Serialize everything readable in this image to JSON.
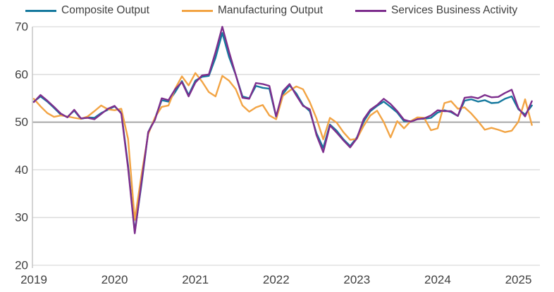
{
  "legend": {
    "items": [
      {
        "label": "Composite Output"
      },
      {
        "label": "Manufacturing Output"
      },
      {
        "label": "Services Business Activity"
      }
    ]
  },
  "axes": {
    "y_tick_labels": [
      "70",
      "60",
      "50",
      "40",
      "30",
      "20"
    ],
    "x_tick_labels": [
      "2019",
      "2020",
      "2021",
      "2022",
      "2023",
      "2024",
      "2025"
    ]
  },
  "colors": {
    "composite": "#16799E",
    "manufacturing": "#F2A444",
    "services": "#7D2E8D",
    "gridline": "#D9D9D9",
    "reference_line_50": "#A6A6A6",
    "axis_line": "#C6C6C6",
    "tick_text": "#404040"
  },
  "chart_data": {
    "type": "line",
    "title": "",
    "xlabel": "",
    "ylabel": "",
    "x_frequency": "monthly",
    "x_start": "2019-01",
    "x_end": "2025-03",
    "x_tick_labels": [
      "2019",
      "2020",
      "2021",
      "2022",
      "2023",
      "2024",
      "2025"
    ],
    "y_ticks": [
      70,
      60,
      50,
      40,
      30,
      20
    ],
    "ylim": [
      20,
      70
    ],
    "reference_line": 50,
    "grid": "horizontal",
    "legend_position": "top",
    "series": [
      {
        "name": "Composite Output",
        "color": "#16799E",
        "values": [
          54.3,
          55.4,
          54.3,
          53.0,
          51.6,
          51.1,
          52.4,
          50.7,
          51.0,
          50.9,
          51.9,
          52.6,
          53.3,
          52.0,
          40.9,
          27.0,
          37.0,
          47.9,
          50.8,
          54.6,
          54.3,
          56.3,
          58.6,
          55.7,
          58.7,
          59.5,
          59.7,
          63.5,
          68.7,
          63.7,
          59.9,
          55.4,
          55.0,
          57.6,
          57.2,
          57.0,
          51.1,
          55.9,
          57.7,
          56.0,
          53.6,
          52.3,
          47.7,
          44.6,
          49.5,
          48.2,
          46.4,
          45.0,
          46.8,
          50.1,
          52.3,
          53.4,
          54.3,
          53.2,
          52.0,
          50.2,
          50.2,
          50.7,
          50.7,
          50.9,
          52.0,
          52.5,
          52.1,
          51.3,
          54.5,
          54.8,
          54.3,
          54.6,
          54.0,
          54.1,
          54.9,
          55.4,
          52.7,
          51.6,
          53.5
        ]
      },
      {
        "name": "Manufacturing Output",
        "color": "#F2A444",
        "values": [
          54.9,
          53.3,
          51.9,
          51.1,
          51.4,
          51.2,
          50.9,
          50.7,
          51.2,
          52.3,
          53.5,
          52.7,
          52.5,
          52.8,
          46.5,
          29.5,
          39.0,
          47.5,
          51.0,
          53.2,
          53.5,
          57.0,
          59.6,
          57.7,
          60.3,
          58.5,
          56.3,
          55.4,
          59.7,
          58.7,
          56.9,
          53.5,
          52.2,
          53.1,
          53.6,
          51.4,
          50.6,
          55.5,
          56.6,
          57.5,
          56.9,
          54.2,
          50.8,
          46.4,
          50.9,
          49.9,
          47.9,
          46.3,
          46.5,
          49.2,
          51.4,
          52.4,
          50.0,
          46.8,
          50.2,
          48.7,
          50.2,
          51.0,
          50.9,
          48.3,
          48.7,
          54.0,
          54.4,
          52.8,
          53.1,
          51.8,
          50.2,
          48.4,
          48.8,
          48.4,
          47.9,
          48.2,
          50.1,
          54.8,
          49.4
        ]
      },
      {
        "name": "Services Business Activity",
        "color": "#7D2E8D",
        "values": [
          54.2,
          55.7,
          54.5,
          53.2,
          51.8,
          51.0,
          52.6,
          50.8,
          50.9,
          50.6,
          51.7,
          52.8,
          53.4,
          51.8,
          40.4,
          26.7,
          37.5,
          47.9,
          50.5,
          55.0,
          54.6,
          56.9,
          58.4,
          55.4,
          58.3,
          59.8,
          60.0,
          64.7,
          70.0,
          64.8,
          59.9,
          55.1,
          54.9,
          58.2,
          58.0,
          57.6,
          51.2,
          56.5,
          58.0,
          55.6,
          53.4,
          52.7,
          47.3,
          43.7,
          49.3,
          47.8,
          46.2,
          44.7,
          46.6,
          50.6,
          52.6,
          53.6,
          54.9,
          53.8,
          52.3,
          50.5,
          50.1,
          50.6,
          50.8,
          51.4,
          52.5,
          52.3,
          52.3,
          51.3,
          55.1,
          55.3,
          55.0,
          55.7,
          55.2,
          55.3,
          56.1,
          56.8,
          52.9,
          51.2,
          54.4
        ]
      }
    ]
  }
}
